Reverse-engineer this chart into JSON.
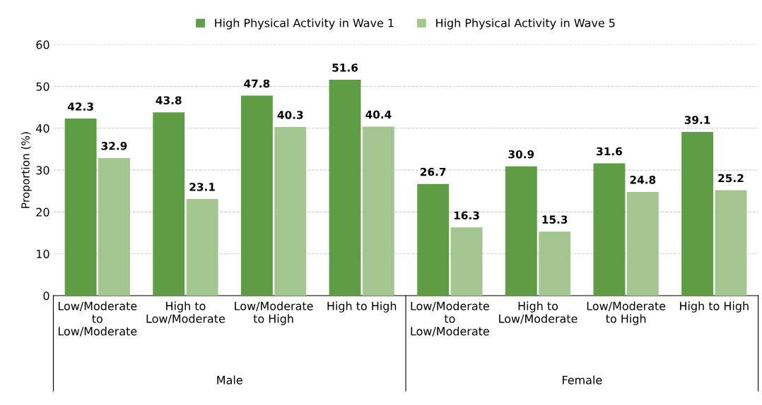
{
  "chart_data": {
    "type": "bar",
    "ylabel": "Proportion (%)",
    "categories": [
      "Low/Moderate\nto\nLow/Moderate",
      "High to\nLow/Moderate",
      "Low/Moderate\nto High",
      "High to High",
      "Low/Moderate\nto\nLow/Moderate",
      "High to\nLow/Moderate",
      "Low/Moderate\nto High",
      "High to High"
    ],
    "series": [
      {
        "name": "High Physical Activity in Wave 1",
        "color": "#5f9d45",
        "values": [
          42.3,
          43.8,
          47.8,
          51.6,
          26.7,
          30.9,
          31.6,
          39.1
        ]
      },
      {
        "name": "High Physical Activity in Wave 5",
        "color": "#a3c590",
        "values": [
          32.9,
          23.1,
          40.3,
          40.4,
          16.3,
          15.3,
          24.8,
          25.2
        ]
      }
    ],
    "ylim": [
      0,
      60
    ],
    "yticks": [
      0,
      10,
      20,
      30,
      40,
      50,
      60
    ],
    "grid": "y",
    "legend": "top",
    "data_labels": true,
    "annotations": [
      "Male",
      "Female"
    ]
  }
}
